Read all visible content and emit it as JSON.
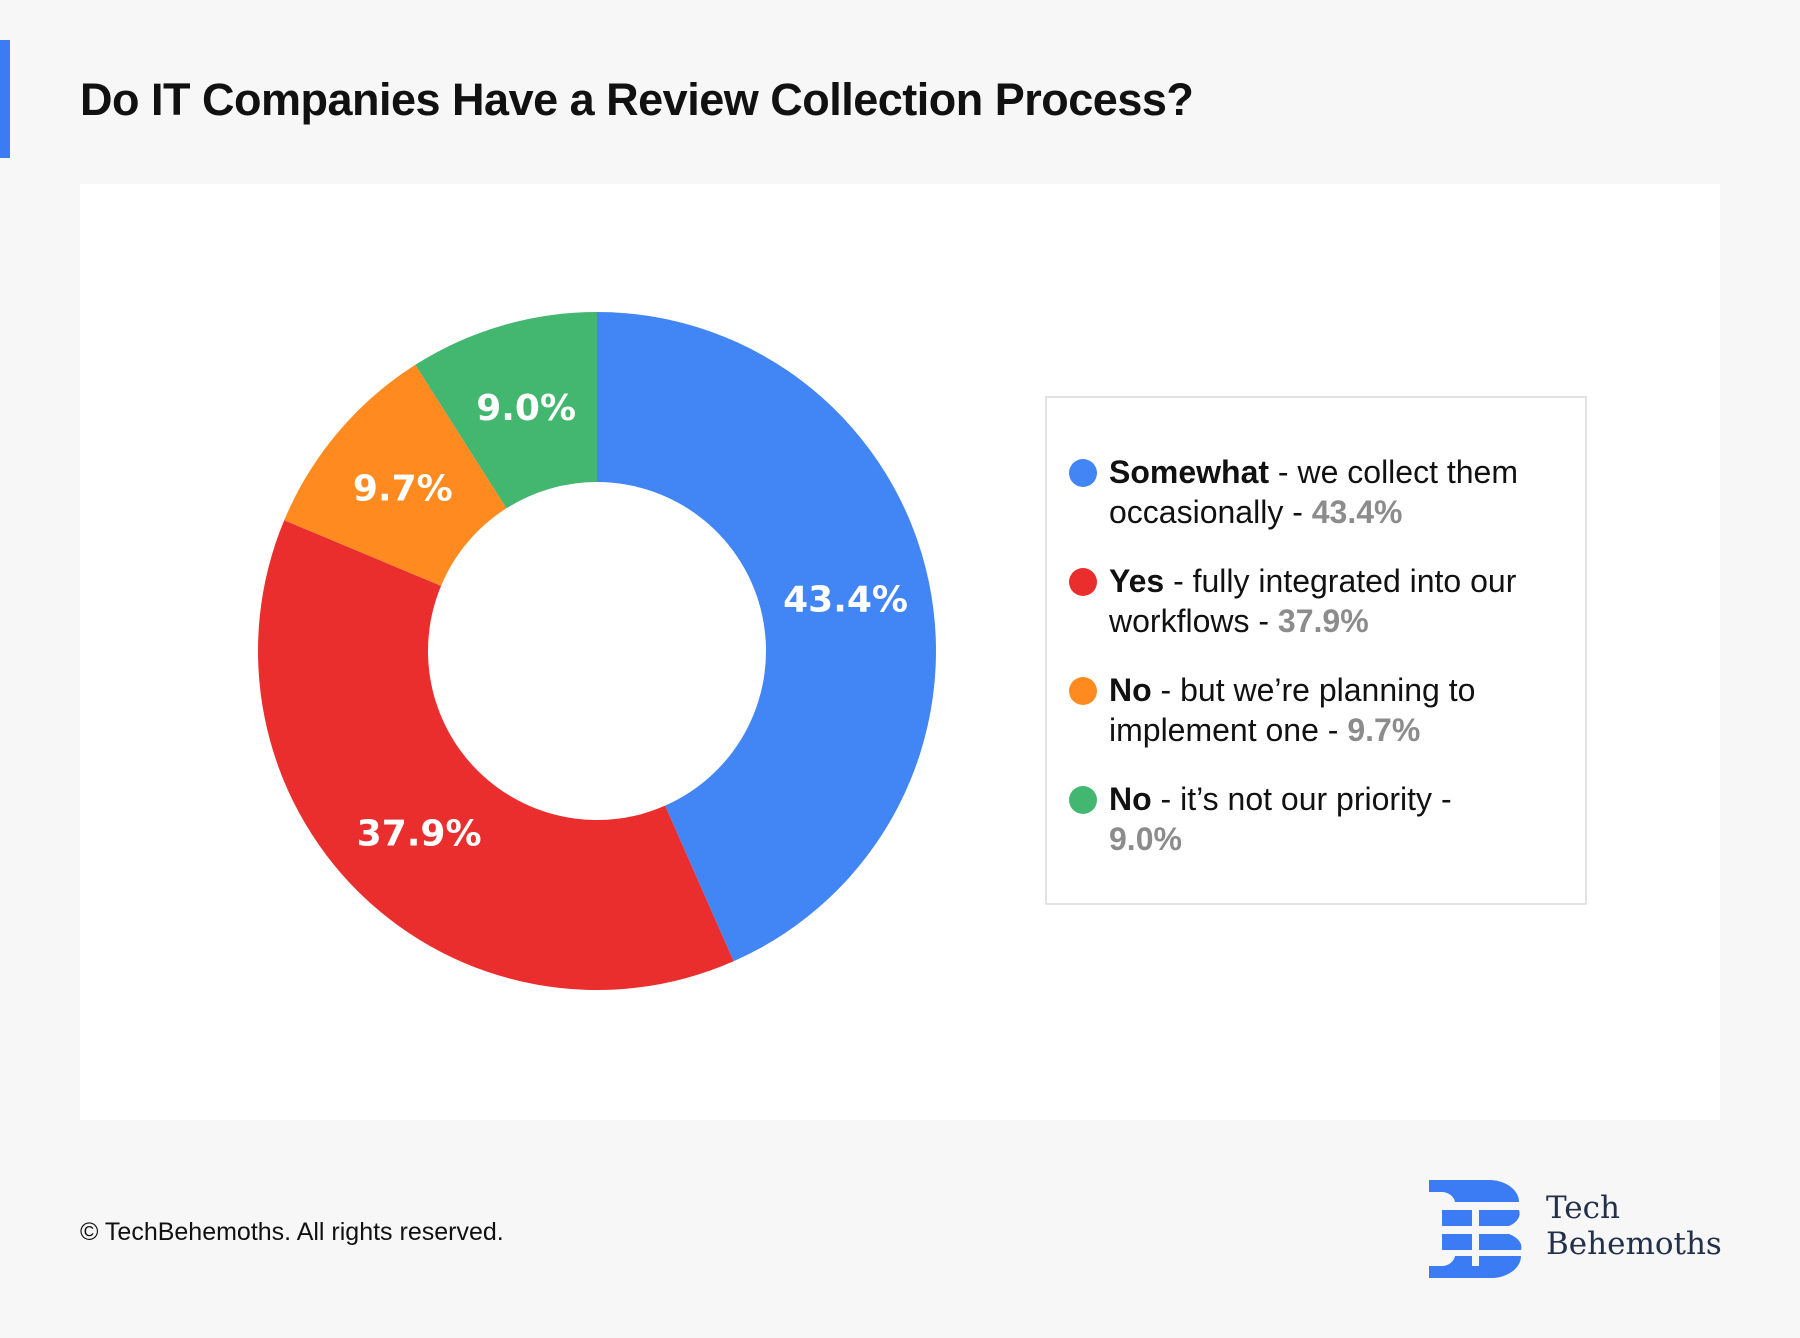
{
  "title": "Do IT Companies Have a Review Collection Process?",
  "chart_data": {
    "type": "pie",
    "subtype": "donut",
    "title": "Do IT Companies Have a Review Collection Process?",
    "categories": [
      "Somewhat - we collect them occasionally",
      "Yes - fully integrated into our workflows",
      "No - but we're planning to implement one",
      "No - it's not our priority"
    ],
    "values": [
      43.4,
      37.9,
      9.7,
      9.0
    ],
    "labels": [
      "43.4%",
      "37.9%",
      "9.7%",
      "9.0%"
    ],
    "colors": [
      "#4285f4",
      "#ea2e2e",
      "#ff8a1f",
      "#43b66f"
    ],
    "legend_position": "right"
  },
  "legend": [
    {
      "bold": "Somewhat",
      "text": " - we collect them occasionally - ",
      "pct": "43.4%"
    },
    {
      "bold": "Yes",
      "text": " - fully integrated into our workflows - ",
      "pct": "37.9%"
    },
    {
      "bold": "No",
      "text": " - but we’re planning to implement one - ",
      "pct": "9.7%"
    },
    {
      "bold": "No",
      "text": " - it’s not our priority - ",
      "pct": "9.0%"
    }
  ],
  "footer": "© TechBehemoths. All rights reserved.",
  "logo": {
    "line1": "Tech",
    "line2": "Behemoths",
    "color": "#3b7cf5"
  }
}
